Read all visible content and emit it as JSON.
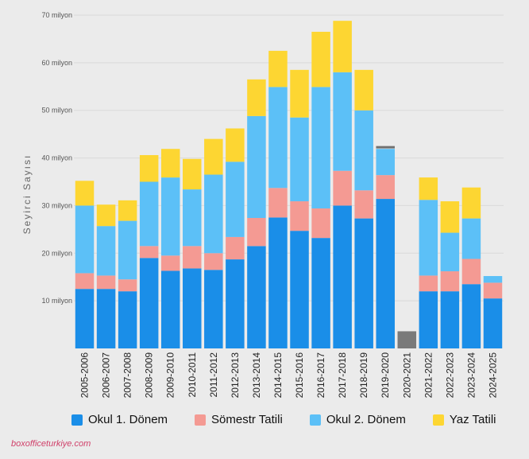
{
  "chart_data": {
    "type": "bar",
    "stacked": true,
    "ylabel": "Seyirci Sayısı",
    "ylim": [
      0,
      70
    ],
    "yticks": [
      {
        "value": 10,
        "label": "10 milyon"
      },
      {
        "value": 20,
        "label": "20 milyon"
      },
      {
        "value": 30,
        "label": "30 milyon"
      },
      {
        "value": 40,
        "label": "40 milyon"
      },
      {
        "value": 50,
        "label": "50 milyon"
      },
      {
        "value": 60,
        "label": "60 milyon"
      },
      {
        "value": 70,
        "label": "70 milyon"
      }
    ],
    "categories": [
      "2005-2006",
      "2006-2007",
      "2007-2008",
      "2008-2009",
      "2009-2010",
      "2010-2011",
      "2011-2012",
      "2012-2013",
      "2013-2014",
      "2014-2015",
      "2015-2016",
      "2016-2017",
      "2017-2018",
      "2018-2019",
      "2019-2020",
      "2020-2021",
      "2021-2022",
      "2022-2023",
      "2023-2024",
      "2024-2025"
    ],
    "series": [
      {
        "name": "Okul 1. Dönem",
        "color": "#1a8ee8",
        "values": [
          12.5,
          12.5,
          12.0,
          19.0,
          16.3,
          16.8,
          16.5,
          18.7,
          21.5,
          27.5,
          24.7,
          23.2,
          30.0,
          27.3,
          31.4,
          0,
          12.0,
          12.0,
          13.5,
          10.5
        ]
      },
      {
        "name": "Sömestr Tatili",
        "color": "#f49a93",
        "values": [
          3.3,
          2.8,
          2.5,
          2.5,
          3.2,
          4.7,
          3.5,
          4.7,
          5.9,
          6.2,
          6.2,
          6.2,
          7.3,
          5.9,
          5.0,
          0,
          3.3,
          4.2,
          5.3,
          3.3
        ]
      },
      {
        "name": "Okul 2. Dönem",
        "color": "#5cc0f7",
        "values": [
          14.2,
          10.4,
          12.3,
          13.5,
          16.4,
          11.9,
          16.5,
          15.8,
          21.4,
          21.2,
          17.6,
          25.5,
          20.7,
          16.8,
          5.5,
          0,
          15.9,
          8.1,
          8.5,
          1.4
        ]
      },
      {
        "name": "Yaz Tatili",
        "color": "#fdd632",
        "values": [
          5.2,
          4.5,
          4.3,
          5.6,
          6.0,
          6.4,
          7.5,
          7.0,
          7.7,
          7.6,
          10.0,
          11.6,
          10.8,
          8.5,
          0,
          0,
          4.7,
          6.6,
          6.5,
          0
        ]
      }
    ],
    "special_bars": [
      {
        "category": "2019-2020",
        "base": 42.0,
        "value": 0.5,
        "color": "#707070"
      },
      {
        "category": "2020-2021",
        "base": 0,
        "value": 3.6,
        "color": "#7a7a7a"
      }
    ],
    "legend_position": "bottom"
  },
  "watermark": "boxofficeturkiye.com"
}
